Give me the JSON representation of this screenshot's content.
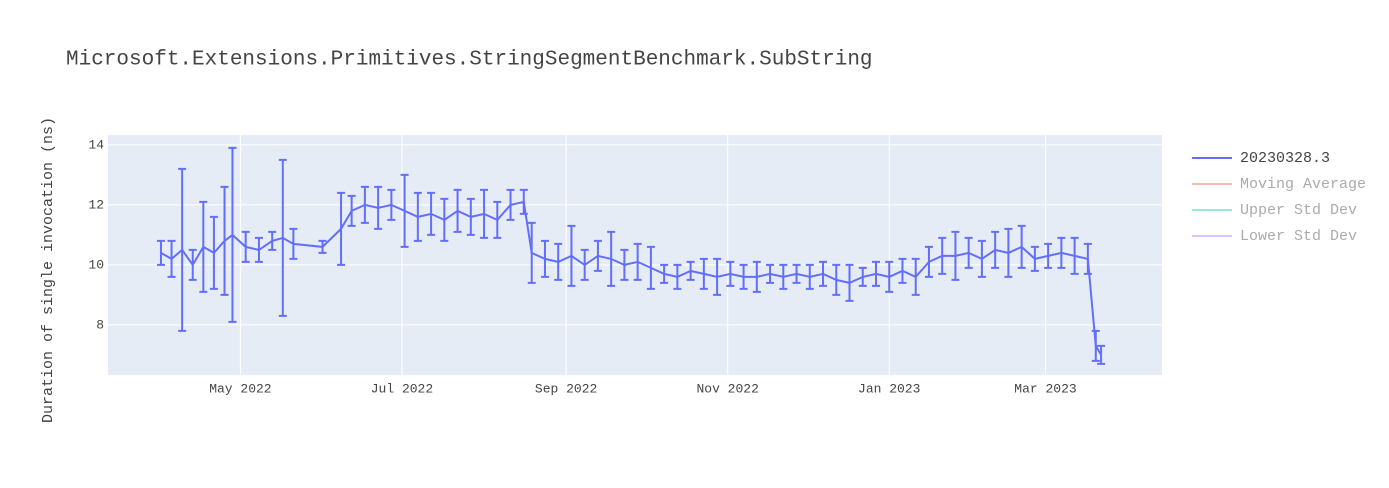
{
  "chart_data": {
    "type": "line",
    "title": "Microsoft.Extensions.Primitives.StringSegmentBenchmark.SubString",
    "y_label": "Duration of single invocation (ns)",
    "x": [
      "2022-04-01",
      "2022-04-05",
      "2022-04-09",
      "2022-04-13",
      "2022-04-17",
      "2022-04-21",
      "2022-04-25",
      "2022-04-28",
      "2022-05-03",
      "2022-05-08",
      "2022-05-13",
      "2022-05-17",
      "2022-05-21",
      "2022-06-01",
      "2022-06-08",
      "2022-06-12",
      "2022-06-17",
      "2022-06-22",
      "2022-06-27",
      "2022-07-02",
      "2022-07-07",
      "2022-07-12",
      "2022-07-17",
      "2022-07-22",
      "2022-07-27",
      "2022-08-01",
      "2022-08-06",
      "2022-08-11",
      "2022-08-16",
      "2022-08-19",
      "2022-08-24",
      "2022-08-29",
      "2022-09-03",
      "2022-09-08",
      "2022-09-13",
      "2022-09-18",
      "2022-09-23",
      "2022-09-28",
      "2022-10-03",
      "2022-10-08",
      "2022-10-13",
      "2022-10-18",
      "2022-10-23",
      "2022-10-28",
      "2022-11-02",
      "2022-11-07",
      "2022-11-12",
      "2022-11-17",
      "2022-11-22",
      "2022-11-27",
      "2022-12-02",
      "2022-12-07",
      "2022-12-12",
      "2022-12-17",
      "2022-12-22",
      "2022-12-27",
      "2023-01-01",
      "2023-01-06",
      "2023-01-11",
      "2023-01-16",
      "2023-01-21",
      "2023-01-26",
      "2023-01-31",
      "2023-02-05",
      "2023-02-10",
      "2023-02-15",
      "2023-02-20",
      "2023-02-25",
      "2023-03-02",
      "2023-03-07",
      "2023-03-12",
      "2023-03-17",
      "2023-03-20",
      "2023-03-22"
    ],
    "series": [
      {
        "name": "20230328.3",
        "color": "#636efa",
        "visible": true,
        "values": [
          10.4,
          10.2,
          10.5,
          10.0,
          10.6,
          10.4,
          10.8,
          11.0,
          10.6,
          10.5,
          10.8,
          10.9,
          10.7,
          10.6,
          11.2,
          11.8,
          12.0,
          11.9,
          12.0,
          11.8,
          11.6,
          11.7,
          11.5,
          11.8,
          11.6,
          11.7,
          11.5,
          12.0,
          12.1,
          10.4,
          10.2,
          10.1,
          10.3,
          10.0,
          10.3,
          10.2,
          10.0,
          10.1,
          9.9,
          9.7,
          9.6,
          9.8,
          9.7,
          9.6,
          9.7,
          9.6,
          9.6,
          9.7,
          9.6,
          9.7,
          9.6,
          9.7,
          9.5,
          9.4,
          9.6,
          9.7,
          9.6,
          9.8,
          9.6,
          10.1,
          10.3,
          10.3,
          10.4,
          10.2,
          10.5,
          10.4,
          10.6,
          10.2,
          10.3,
          10.4,
          10.3,
          10.2,
          7.3,
          7.0
        ],
        "error": [
          0.4,
          0.6,
          2.7,
          0.5,
          1.5,
          1.2,
          1.8,
          2.9,
          0.5,
          0.4,
          0.3,
          2.6,
          0.5,
          0.2,
          1.2,
          0.5,
          0.6,
          0.7,
          0.5,
          1.2,
          0.8,
          0.7,
          0.7,
          0.7,
          0.6,
          0.8,
          0.6,
          0.5,
          0.4,
          1.0,
          0.6,
          0.6,
          1.0,
          0.5,
          0.5,
          0.9,
          0.5,
          0.6,
          0.7,
          0.3,
          0.4,
          0.3,
          0.5,
          0.6,
          0.4,
          0.4,
          0.5,
          0.3,
          0.4,
          0.3,
          0.4,
          0.4,
          0.5,
          0.6,
          0.3,
          0.4,
          0.5,
          0.4,
          0.6,
          0.5,
          0.6,
          0.8,
          0.5,
          0.6,
          0.6,
          0.8,
          0.7,
          0.4,
          0.4,
          0.5,
          0.6,
          0.5,
          0.5,
          0.3
        ]
      },
      {
        "name": "Moving Average",
        "color": "#ef553b",
        "visible": false
      },
      {
        "name": "Upper Std Dev",
        "color": "#00cc96",
        "visible": false
      },
      {
        "name": "Lower Std Dev",
        "color": "#ab63fa",
        "visible": false
      }
    ],
    "xlim": [
      "2022-03-12",
      "2023-04-14"
    ],
    "xticks": [
      {
        "value": "2022-05-01",
        "label": "May 2022"
      },
      {
        "value": "2022-07-01",
        "label": "Jul 2022"
      },
      {
        "value": "2022-09-01",
        "label": "Sep 2022"
      },
      {
        "value": "2022-11-01",
        "label": "Nov 2022"
      },
      {
        "value": "2023-01-01",
        "label": "Jan 2023"
      },
      {
        "value": "2023-03-01",
        "label": "Mar 2023"
      }
    ],
    "ylim": [
      6.33,
      14.33
    ],
    "yticks": [
      8,
      10,
      12,
      14
    ],
    "grid": true
  }
}
